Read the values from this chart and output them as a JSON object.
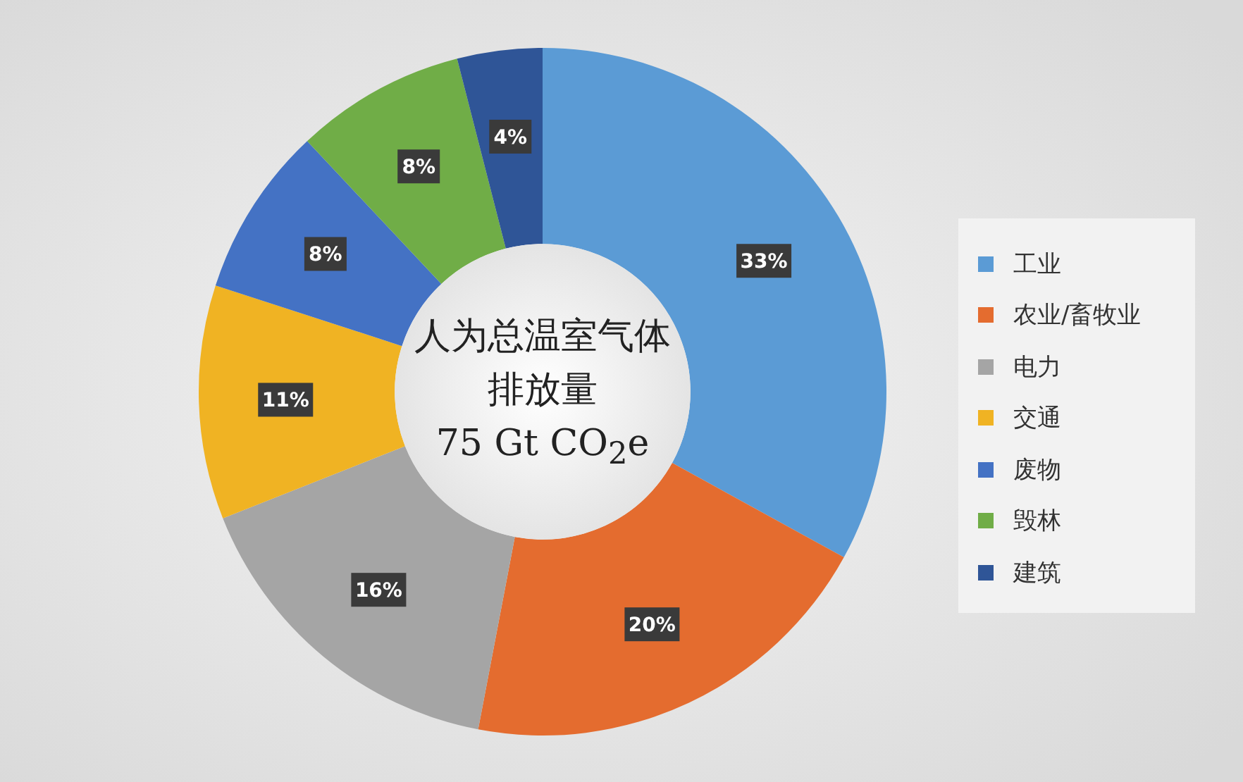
{
  "chart_data": {
    "type": "donut",
    "title": "人为总温室气体排放量",
    "subtitle": "75 Gt CO$_{2}$e",
    "categories": [
      "工业",
      "农业/畜牧业",
      "电力",
      "交通",
      "废物",
      "毁林",
      "建筑"
    ],
    "values": [
      33,
      20,
      16,
      11,
      8,
      8,
      4
    ],
    "colors": [
      "#5b9bd5",
      "#e46c2f",
      "#a5a5a5",
      "#f0b323",
      "#4472c4",
      "#70ad47",
      "#2f5597"
    ],
    "value_labels": [
      "33%",
      "20%",
      "16%",
      "11%",
      "8%",
      "8%",
      "4%"
    ],
    "legend": "right"
  }
}
